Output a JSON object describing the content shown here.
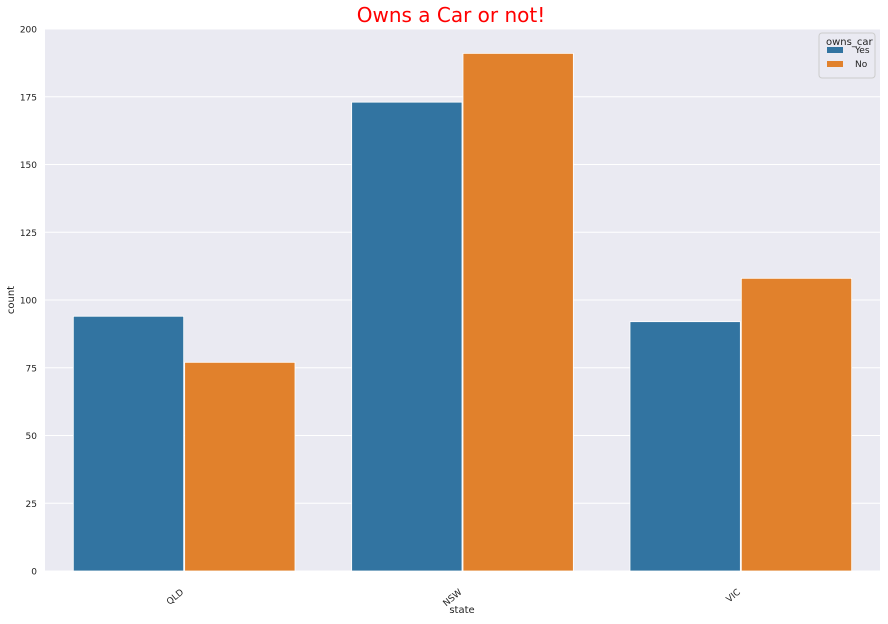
{
  "chart_data": {
    "type": "bar",
    "title": "Owns a Car or not!",
    "xlabel": "state",
    "ylabel": "count",
    "categories": [
      "QLD",
      "NSW",
      "VIC"
    ],
    "series": [
      {
        "name": "Yes",
        "values": [
          94,
          173,
          92
        ],
        "color": "#3274a1"
      },
      {
        "name": "No",
        "values": [
          77,
          191,
          108
        ],
        "color": "#e1812c"
      }
    ],
    "ylim": [
      0,
      200
    ],
    "yticks": [
      0,
      25,
      50,
      75,
      100,
      125,
      150,
      175,
      200
    ],
    "grid": true,
    "legend": {
      "title": "owns_car",
      "placement": "top-right"
    },
    "colors": {
      "background": "#eaeaf2",
      "grid": "#ffffff",
      "title": "#ff0000"
    }
  }
}
